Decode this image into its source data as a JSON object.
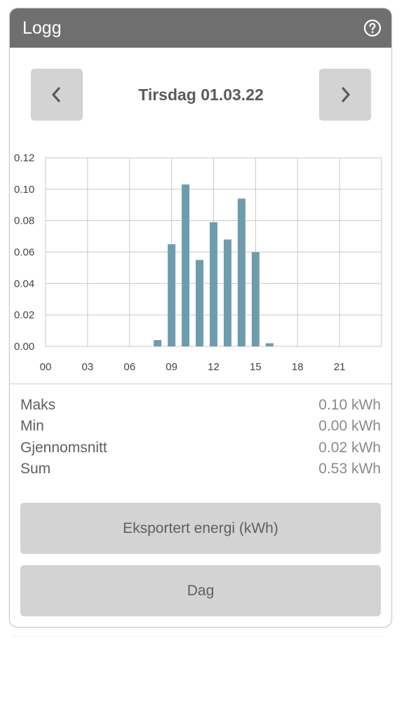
{
  "header": {
    "title": "Logg",
    "help_icon": "question-circle-icon"
  },
  "navigation": {
    "prev_icon": "chevron-left-icon",
    "next_icon": "chevron-right-icon",
    "date": "Tirsdag 01.03.22"
  },
  "chart_data": {
    "type": "bar",
    "y_ticks": [
      "0.12",
      "0.10",
      "0.08",
      "0.06",
      "0.04",
      "0.02",
      "0.00"
    ],
    "x_ticks": [
      "00",
      "03",
      "06",
      "09",
      "12",
      "15",
      "18",
      "21"
    ],
    "ylim": [
      0,
      0.12
    ],
    "xlim": [
      0,
      24
    ],
    "grid": true,
    "bar_color": "#6d9dad",
    "x": [
      8,
      9,
      10,
      11,
      12,
      13,
      14,
      15,
      16
    ],
    "values": [
      0.004,
      0.065,
      0.103,
      0.055,
      0.079,
      0.068,
      0.094,
      0.06,
      0.002
    ]
  },
  "stats": [
    {
      "label": "Maks",
      "value": "0.10 kWh"
    },
    {
      "label": "Min",
      "value": "0.00 kWh"
    },
    {
      "label": "Gjennomsnitt",
      "value": "0.02 kWh"
    },
    {
      "label": "Sum",
      "value": "0.53 kWh"
    }
  ],
  "buttons": {
    "energy_type": "Eksportert energi (kWh)",
    "period": "Dag"
  },
  "colors": {
    "header_bg": "#6f6f6f",
    "button_bg": "#d3d3d3",
    "bar": "#6d9dad",
    "grid": "#c8c8c8"
  }
}
